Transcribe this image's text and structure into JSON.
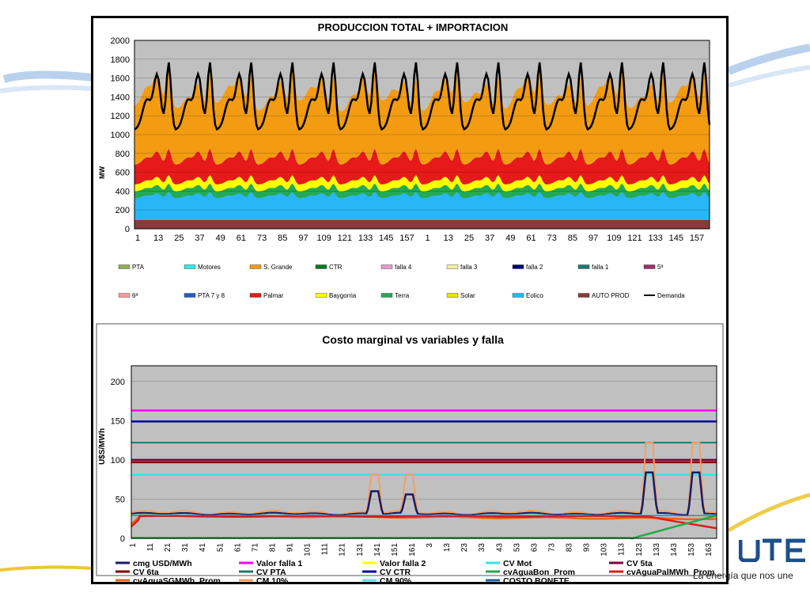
{
  "slide": {
    "slogan": "La energía que nos une",
    "logo_text": "UTE",
    "colors": {
      "brand_blue": "#1b4f8a",
      "accent_yellow": "#e8b800"
    }
  },
  "chart_data": [
    {
      "type": "area",
      "title": "PRODUCCION TOTAL + IMPORTACION",
      "xlabel": "",
      "ylabel": "MW",
      "ylim": [
        0,
        2000
      ],
      "yticks": [
        0,
        200,
        400,
        600,
        800,
        1000,
        1200,
        1400,
        1600,
        1800,
        2000
      ],
      "xticks": [
        "1",
        "13",
        "25",
        "37",
        "49",
        "61",
        "73",
        "85",
        "97",
        "109",
        "121",
        "133",
        "145",
        "157",
        "1",
        "13",
        "25",
        "37",
        "49",
        "61",
        "73",
        "85",
        "97",
        "109",
        "121",
        "133",
        "145",
        "157"
      ],
      "grid": true,
      "plot_background": "#c0c0c0",
      "legend_position": "bottom",
      "legend": [
        {
          "name": "PTA",
          "color": "#8fad5a",
          "kind": "area"
        },
        {
          "name": "Motores",
          "color": "#33e6e6",
          "kind": "area"
        },
        {
          "name": "S. Grande",
          "color": "#f39c12",
          "kind": "area"
        },
        {
          "name": "CTR",
          "color": "#0a7a1f",
          "kind": "area"
        },
        {
          "name": "falla 4",
          "color": "#e89cc8",
          "kind": "area"
        },
        {
          "name": "falla 3",
          "color": "#f5f0a0",
          "kind": "area"
        },
        {
          "name": "falla 2",
          "color": "#000080",
          "kind": "area"
        },
        {
          "name": "falla 1",
          "color": "#1f7a6e",
          "kind": "area"
        },
        {
          "name": "5ª",
          "color": "#993366",
          "kind": "area"
        },
        {
          "name": "6ª",
          "color": "#ff9a9a",
          "kind": "area"
        },
        {
          "name": "PTA 7 y 8",
          "color": "#1f5fbf",
          "kind": "area"
        },
        {
          "name": "Palmar",
          "color": "#e61a1a",
          "kind": "area"
        },
        {
          "name": "Baygorria",
          "color": "#ffff00",
          "kind": "area"
        },
        {
          "name": "Terra",
          "color": "#22aa55",
          "kind": "area"
        },
        {
          "name": "Solar",
          "color": "#e6e600",
          "kind": "area"
        },
        {
          "name": "Eolico",
          "color": "#29b6f6",
          "kind": "area"
        },
        {
          "name": "AUTO PROD",
          "color": "#8b3a3a",
          "kind": "area"
        },
        {
          "name": "Demanda",
          "color": "#000000",
          "kind": "line"
        }
      ],
      "layers": [
        {
          "name": "AUTO PROD",
          "color": "#8b3a3a",
          "base": 95,
          "amp": 0,
          "peak": 0
        },
        {
          "name": "Eolico",
          "color": "#29b6f6",
          "base": 230,
          "amp": 70,
          "peak": 0
        },
        {
          "name": "Terra",
          "color": "#22aa55",
          "base": 70,
          "amp": 25,
          "peak": 0
        },
        {
          "name": "Baygorria",
          "color": "#ffff00",
          "base": 75,
          "amp": 15,
          "peak": 0
        },
        {
          "name": "Palmar",
          "color": "#e61a1a",
          "base": 210,
          "amp": 80,
          "peak": 0
        },
        {
          "name": "S. Grande",
          "color": "#f39c12",
          "base": 620,
          "amp": 200,
          "peak": 0.3
        }
      ],
      "demand": {
        "name": "Demanda",
        "min": 1050,
        "max": 1860
      }
    },
    {
      "type": "line",
      "title": "Costo marginal vs variables y falla",
      "xlabel": "",
      "ylabel": "U$S/MWh",
      "ylim": [
        0,
        220
      ],
      "yticks": [
        0,
        50,
        100,
        150,
        200
      ],
      "xticks": [
        "1",
        "11",
        "21",
        "31",
        "41",
        "51",
        "61",
        "71",
        "81",
        "91",
        "101",
        "111",
        "121",
        "131",
        "141",
        "151",
        "161",
        "3",
        "13",
        "23",
        "33",
        "43",
        "53",
        "63",
        "73",
        "83",
        "93",
        "103",
        "113",
        "123",
        "133",
        "143",
        "153",
        "163"
      ],
      "grid": true,
      "plot_background": "#c0c0c0",
      "legend_position": "bottom",
      "n_points": 340,
      "series": [
        {
          "name": "cmg USD/MWh",
          "color": "#1a1a66",
          "width": 2.5
        },
        {
          "name": "Valor falla 1",
          "color": "#ff00ff",
          "constant": 163,
          "width": 2.5
        },
        {
          "name": "Valor falla 2",
          "color": "#ffff00",
          "width": 2.5
        },
        {
          "name": "CV Mot",
          "color": "#33e6e6",
          "constant": 81,
          "width": 2.5
        },
        {
          "name": "CV 5ta",
          "color": "#800040",
          "constant": 100,
          "width": 2.5
        },
        {
          "name": "CV 6ta",
          "color": "#800000",
          "constant": 97,
          "width": 2.5
        },
        {
          "name": "CV PTA",
          "color": "#1f7a6e",
          "constant": 122,
          "width": 2
        },
        {
          "name": "CV CTR",
          "color": "#0000aa",
          "constant": 149,
          "width": 2.5
        },
        {
          "name": "cvAguaBon_Prom",
          "color": "#22aa44",
          "width": 2.5
        },
        {
          "name": "cvAguaPalMWh_Prom",
          "color": "#e61a1a",
          "width": 2.5
        },
        {
          "name": "cvAguaSGMWh_Prom",
          "color": "#e8641a",
          "width": 2.5
        },
        {
          "name": "CM 10%",
          "color": "#f0a060",
          "width": 2
        },
        {
          "name": "CM 90%",
          "color": "#66d9ef",
          "width": 1.5
        },
        {
          "name": "COSTO BONETE",
          "color": "#1f5fa0",
          "width": 1.5
        }
      ],
      "features": {
        "cmg_base": 31,
        "spikes": [
          {
            "center": 141,
            "cm10": 82,
            "cmg": 60
          },
          {
            "center": 161,
            "cm10": 82,
            "cmg": 56
          },
          {
            "center": 300,
            "cm10": 122,
            "cmg": 84
          },
          {
            "center": 327,
            "cm10": 122,
            "cmg": 84
          }
        ]
      }
    }
  ]
}
